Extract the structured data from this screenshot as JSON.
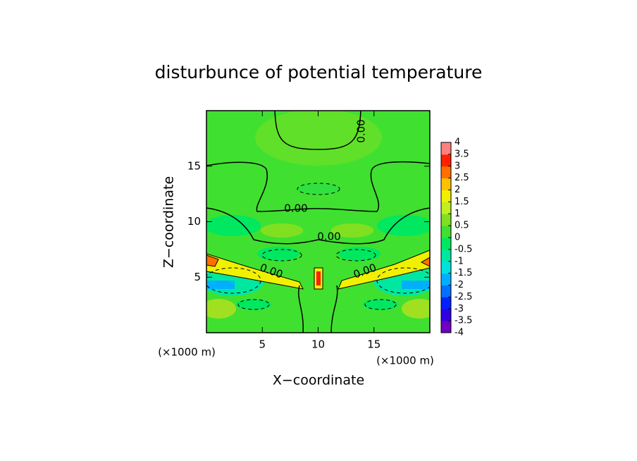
{
  "chart_data": {
    "type": "contour",
    "title": "disturbunce of potential temperature",
    "x_label": "X−coordinate",
    "y_label": "Z−coordinate",
    "x_unit": "(×1000 m)",
    "y_unit": "(×1000 m)",
    "xlim": [
      0,
      20
    ],
    "xticks": [
      5,
      10,
      15
    ],
    "ylim": [
      0,
      20
    ],
    "yticks": [
      5,
      10,
      15
    ],
    "contour_labels": [
      "0.00",
      "0.00",
      "0.00",
      "0.00",
      "0.00"
    ],
    "colorbar": {
      "lim": [
        -4,
        4
      ],
      "ticks": [
        -4,
        -3.5,
        -3,
        -2.5,
        -2,
        -1.5,
        -1,
        -0.5,
        0,
        0.5,
        1,
        1.5,
        2,
        2.5,
        3,
        3.5,
        4
      ],
      "colors": [
        "#7000c0",
        "#3000e0",
        "#0020ff",
        "#0070ff",
        "#00b0ff",
        "#00e0e0",
        "#00e8a0",
        "#00e860",
        "#40e030",
        "#80e020",
        "#c0f020",
        "#f0f000",
        "#ffc000",
        "#ff7000",
        "#ff2000",
        "#ff8080"
      ]
    }
  }
}
